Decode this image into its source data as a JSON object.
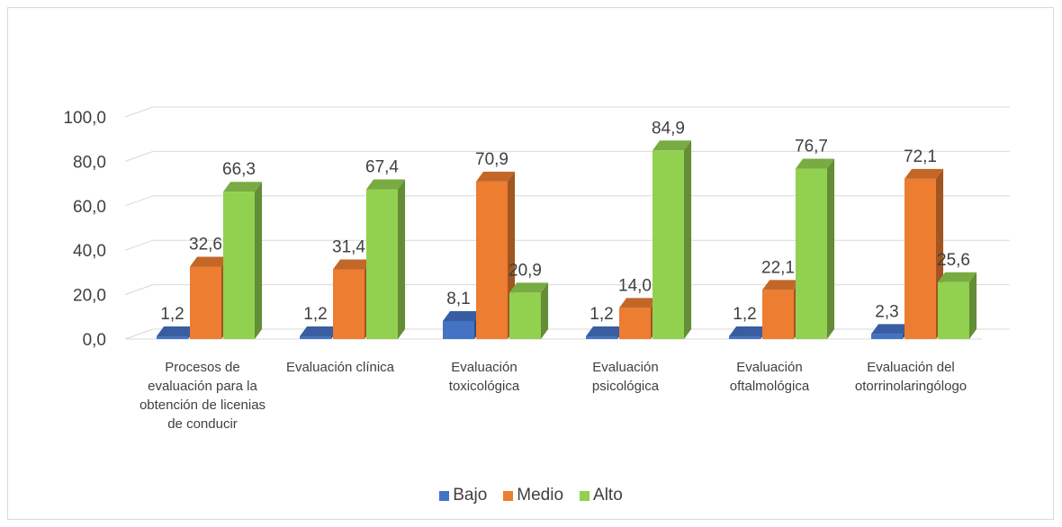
{
  "chart_data": {
    "type": "bar",
    "style": "3d-clustered-column",
    "categories": [
      "Procesos de evaluación para la obtención de licenias de conducir",
      "Evaluación clínica",
      "Evaluación toxicológica",
      "Evaluación psicológica",
      "Evaluación oftalmológica",
      "Evaluación del otorrinolaringólogo"
    ],
    "series": [
      {
        "name": "Bajo",
        "color": "#4472c4",
        "values": [
          1.2,
          1.2,
          8.1,
          1.2,
          1.2,
          2.3
        ],
        "labels": [
          "1,2",
          "1,2",
          "8,1",
          "1,2",
          "1,2",
          "2,3"
        ]
      },
      {
        "name": "Medio",
        "color": "#ed7d31",
        "values": [
          32.6,
          31.4,
          70.9,
          14.0,
          22.1,
          72.1
        ],
        "labels": [
          "32,6",
          "31,4",
          "70,9",
          "14,0",
          "22,1",
          "72,1"
        ]
      },
      {
        "name": "Alto",
        "color": "#92d050",
        "values": [
          66.3,
          67.4,
          20.9,
          84.9,
          76.7,
          25.6
        ],
        "labels": [
          "66,3",
          "67,4",
          "20,9",
          "84,9",
          "76,7",
          "25,6"
        ]
      }
    ],
    "yticks": [
      "0,0",
      "20,0",
      "40,0",
      "60,0",
      "80,0",
      "100,0"
    ],
    "ylim": [
      0,
      100
    ],
    "grid": true,
    "legend_position": "bottom"
  }
}
